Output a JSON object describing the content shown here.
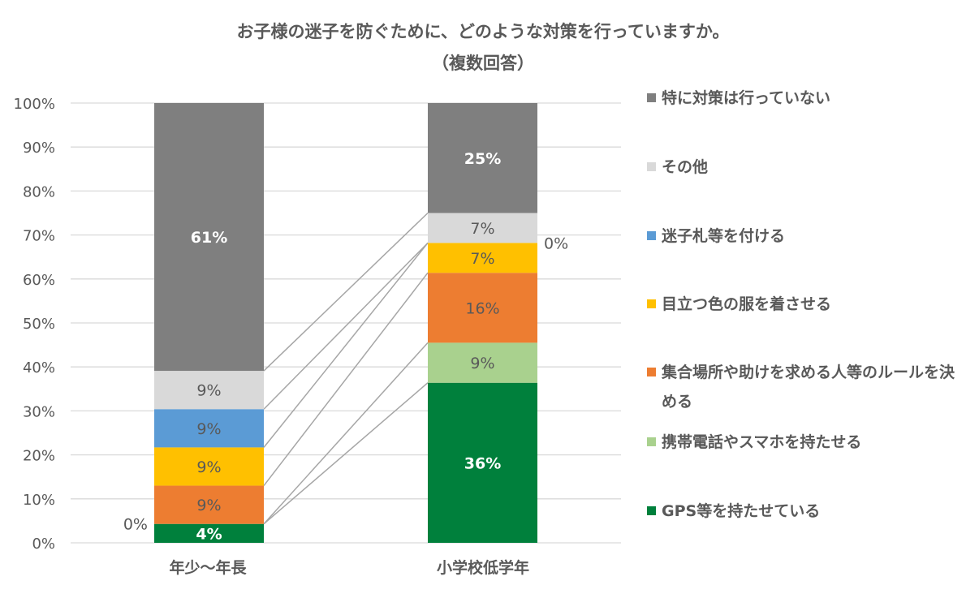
{
  "chart_data": {
    "type": "bar",
    "stacked": true,
    "percent_stacked": true,
    "title": "お子様の迷子を防ぐために、どのような対策を行っていますか。",
    "subtitle": "（複数回答）",
    "categories": [
      "年少〜年長",
      "小学校低学年"
    ],
    "yticks": [
      "0%",
      "10%",
      "20%",
      "30%",
      "40%",
      "50%",
      "60%",
      "70%",
      "80%",
      "90%",
      "100%"
    ],
    "ylim": [
      0,
      100
    ],
    "grid": true,
    "legend_position": "right",
    "series_lines": true,
    "series": [
      {
        "name": "GPS等を持たせている",
        "color": "#00803C",
        "values": [
          4.3,
          36.4
        ],
        "labels": [
          "4%",
          "36%"
        ],
        "label_style": "light"
      },
      {
        "name": "携帯電話やスマホを持たせる",
        "color": "#A9D18E",
        "values": [
          0,
          9.1
        ],
        "labels": [
          "0%",
          "9%"
        ],
        "label_style": "dark"
      },
      {
        "name": "集合場所や助けを求める人等のルールを決める",
        "color": "#ED7D31",
        "values": [
          8.7,
          15.9
        ],
        "labels": [
          "9%",
          "16%"
        ],
        "label_style": "dark"
      },
      {
        "name": "目立つ色の服を着させる",
        "color": "#FFC000",
        "values": [
          8.7,
          6.8
        ],
        "labels": [
          "9%",
          "7%"
        ],
        "label_style": "dark"
      },
      {
        "name": "迷子札等を付ける",
        "color": "#5B9BD5",
        "values": [
          8.7,
          0
        ],
        "labels": [
          "9%",
          "0%"
        ],
        "label_style": "dark"
      },
      {
        "name": "その他",
        "color": "#D9D9D9",
        "values": [
          8.7,
          6.8
        ],
        "labels": [
          "9%",
          "7%"
        ],
        "label_style": "dark"
      },
      {
        "name": "特に対策は行っていない",
        "color": "#7F7F7F",
        "values": [
          60.9,
          25.0
        ],
        "labels": [
          "61%",
          "25%"
        ],
        "label_style": "light"
      }
    ]
  }
}
